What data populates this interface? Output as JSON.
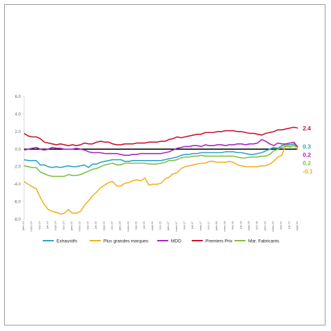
{
  "chart_data": {
    "type": "line",
    "title": "",
    "xlabel": "",
    "ylabel": "",
    "ylim": [
      -8.0,
      6.0
    ],
    "y_ticks": [
      "6.0",
      "4.0",
      "2.0",
      "0.0",
      "-2.0",
      "-4.0",
      "-6.0",
      "-8.0"
    ],
    "zero_line": true,
    "grid": false,
    "legend_position": "bottom",
    "x_start": "janv-14",
    "x_end": "sept-19",
    "x": [
      "janv-14",
      "févr-14",
      "mars-14",
      "avr-14",
      "mai-14",
      "juin-14",
      "juil-14",
      "août-14",
      "sept-14",
      "oct-14",
      "nov-14",
      "déc-14",
      "janv-15",
      "févr-15",
      "mars-15",
      "avr-15",
      "mai-15",
      "juin-15",
      "juil-15",
      "août-15",
      "sept-15",
      "oct-15",
      "nov-15",
      "déc-15",
      "janv-16",
      "févr-16",
      "mars-16",
      "avr-16",
      "mai-16",
      "juin-16",
      "juil-16",
      "août-16",
      "sept-16",
      "oct-16",
      "nov-16",
      "déc-16",
      "janv-17",
      "févr-17",
      "mars-17",
      "avr-17",
      "mai-17",
      "juin-17",
      "juil-17",
      "août-17",
      "sept-17",
      "oct-17",
      "nov-17",
      "déc-17",
      "janv-18",
      "févr-18",
      "mars-18",
      "avr-18",
      "mai-18",
      "juin-18",
      "juil-18",
      "août-18",
      "sept-18",
      "oct-18",
      "nov-18",
      "déc-18",
      "janv-19",
      "févr-19",
      "mars-19",
      "avr-19",
      "mai-19",
      "juin-19",
      "juil-19",
      "août-19",
      "sept-19"
    ],
    "x_tick_labels": [
      "janv-14",
      "mars-14",
      "mai-14",
      "juil-14",
      "sept-14",
      "nov-14",
      "janv-15",
      "mars-15",
      "mai-15",
      "juil-15",
      "sept-15",
      "nov-15",
      "janv-16",
      "mars-16",
      "mai-16",
      "juil-16",
      "sept-16",
      "nov-16",
      "janv-17",
      "mars-17",
      "mai-17",
      "juil-17",
      "sept-17",
      "nov-17",
      "janv-18",
      "mars-18",
      "mai-18",
      "juil-18",
      "sept-18",
      "nov-18",
      "janv-19",
      "mars-19",
      "mai-19",
      "juil-19",
      "sept-19"
    ],
    "series": [
      {
        "name": "Exhaustifs",
        "color": "#2aa3c9",
        "end_label": "0.3",
        "values": [
          -1.2,
          -1.3,
          -1.3,
          -1.3,
          -1.8,
          -1.8,
          -2.0,
          -2.1,
          -2.0,
          -2.1,
          -2.0,
          -1.9,
          -2.0,
          -2.0,
          -1.9,
          -1.8,
          -2.1,
          -1.7,
          -1.7,
          -1.5,
          -1.4,
          -1.3,
          -1.2,
          -1.2,
          -1.2,
          -1.4,
          -1.4,
          -1.3,
          -1.3,
          -1.3,
          -1.3,
          -1.3,
          -1.3,
          -1.3,
          -1.3,
          -1.2,
          -1.1,
          -1.0,
          -0.9,
          -0.7,
          -0.6,
          -0.6,
          -0.5,
          -0.5,
          -0.4,
          -0.4,
          -0.4,
          -0.4,
          -0.4,
          -0.4,
          -0.3,
          -0.3,
          -0.3,
          -0.4,
          -0.4,
          -0.5,
          -0.6,
          -0.6,
          -0.5,
          -0.4,
          -0.2,
          0.0,
          0.2,
          0.1,
          0.4,
          0.5,
          0.5,
          0.6,
          0.3
        ]
      },
      {
        "name": "Plus grandes marques",
        "color": "#f2b01e",
        "end_label": "-0.1",
        "values": [
          -3.7,
          -4.0,
          -4.3,
          -4.5,
          -5.5,
          -6.3,
          -6.9,
          -7.1,
          -7.2,
          -7.4,
          -7.3,
          -6.9,
          -7.3,
          -7.3,
          -7.1,
          -6.4,
          -5.9,
          -5.3,
          -4.9,
          -4.4,
          -4.1,
          -3.8,
          -3.7,
          -4.2,
          -4.2,
          -3.9,
          -3.8,
          -3.6,
          -3.5,
          -3.6,
          -3.3,
          -4.1,
          -4.0,
          -4.0,
          -3.9,
          -3.4,
          -3.2,
          -2.8,
          -2.7,
          -2.2,
          -2.0,
          -1.9,
          -1.8,
          -1.7,
          -1.6,
          -1.6,
          -1.4,
          -1.4,
          -1.5,
          -1.5,
          -1.5,
          -1.4,
          -1.5,
          -1.8,
          -1.9,
          -2.0,
          -2.0,
          -2.0,
          -2.0,
          -1.9,
          -1.9,
          -1.7,
          -1.4,
          -0.9,
          -0.7,
          0.5,
          0.2,
          0.5,
          -0.1
        ]
      },
      {
        "name": "MDD",
        "color": "#a522c4",
        "end_label": "0.2",
        "values": [
          -0.1,
          0.0,
          0.1,
          0.2,
          0.0,
          -0.1,
          0.0,
          0.2,
          0.1,
          0.1,
          0.0,
          0.0,
          0.0,
          0.1,
          0.0,
          -0.1,
          -0.3,
          -0.4,
          -0.4,
          -0.4,
          -0.5,
          -0.5,
          -0.5,
          -0.5,
          -0.6,
          -0.7,
          -0.7,
          -0.6,
          -0.6,
          -0.5,
          -0.5,
          -0.5,
          -0.5,
          -0.5,
          -0.5,
          -0.4,
          -0.3,
          -0.1,
          0.1,
          0.2,
          0.3,
          0.3,
          0.4,
          0.4,
          0.3,
          0.5,
          0.4,
          0.4,
          0.5,
          0.5,
          0.4,
          0.5,
          0.5,
          0.6,
          0.6,
          0.5,
          0.6,
          0.6,
          0.7,
          1.1,
          0.9,
          0.6,
          0.4,
          0.7,
          0.6,
          0.6,
          0.7,
          0.8,
          0.2
        ]
      },
      {
        "name": "Premiers Prix",
        "color": "#c8102e",
        "end_label": "2.4",
        "values": [
          1.8,
          1.5,
          1.4,
          1.4,
          1.2,
          0.8,
          0.7,
          0.6,
          0.5,
          0.6,
          0.5,
          0.4,
          0.5,
          0.4,
          0.5,
          0.7,
          0.6,
          0.6,
          0.8,
          0.9,
          0.8,
          0.8,
          0.6,
          0.5,
          0.5,
          0.6,
          0.6,
          0.6,
          0.7,
          0.7,
          0.7,
          0.8,
          0.8,
          0.8,
          0.9,
          0.9,
          1.1,
          1.2,
          1.4,
          1.3,
          1.4,
          1.5,
          1.6,
          1.7,
          1.7,
          1.9,
          1.9,
          1.9,
          2.0,
          2.0,
          2.1,
          2.1,
          2.1,
          2.0,
          2.0,
          1.9,
          1.8,
          1.8,
          1.7,
          1.6,
          1.8,
          1.9,
          2.0,
          2.2,
          2.2,
          2.3,
          2.4,
          2.5,
          2.4
        ]
      },
      {
        "name": "Mar. Fabricants",
        "color": "#7bc043",
        "end_label": "0.2",
        "values": [
          -1.9,
          -2.0,
          -2.1,
          -2.1,
          -2.6,
          -2.8,
          -3.0,
          -3.1,
          -3.1,
          -3.1,
          -3.1,
          -2.9,
          -3.0,
          -3.0,
          -2.9,
          -2.7,
          -2.5,
          -2.3,
          -2.2,
          -2.0,
          -1.8,
          -1.7,
          -1.6,
          -1.8,
          -1.8,
          -1.6,
          -1.6,
          -1.6,
          -1.6,
          -1.6,
          -1.6,
          -1.7,
          -1.7,
          -1.7,
          -1.6,
          -1.5,
          -1.3,
          -1.3,
          -1.2,
          -1.0,
          -0.9,
          -0.9,
          -0.8,
          -0.8,
          -0.7,
          -0.8,
          -0.8,
          -0.8,
          -0.8,
          -0.8,
          -0.8,
          -0.8,
          -0.8,
          -0.9,
          -1.0,
          -1.0,
          -0.9,
          -0.9,
          -0.9,
          -0.8,
          -0.8,
          -0.6,
          -0.2,
          0.0,
          0.2,
          0.3,
          0.3,
          0.4,
          0.2
        ]
      }
    ]
  }
}
